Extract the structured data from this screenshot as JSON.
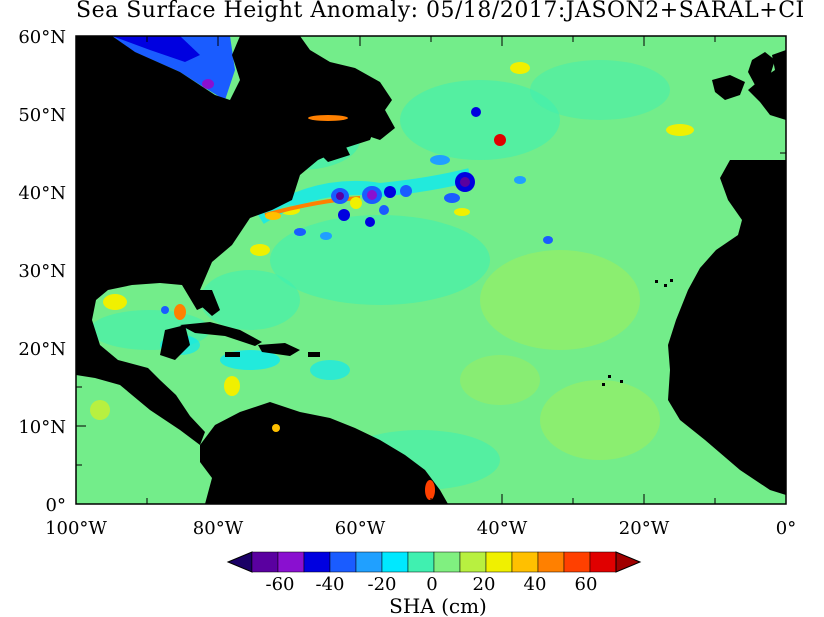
{
  "title": "Sea Surface Height Anomaly: 05/18/2017:JASON2+SARAL+CI",
  "lat_labels": [
    "60°N",
    "50°N",
    "40°N",
    "30°N",
    "20°N",
    "10°N",
    "0°"
  ],
  "lon_labels": [
    "100°W",
    "80°W",
    "60°W",
    "40°W",
    "20°W",
    "0°"
  ],
  "colorbar": {
    "tick_labels": [
      "-60",
      "-40",
      "-20",
      "0",
      "20",
      "40",
      "60"
    ],
    "label": "SHA (cm)",
    "colors": [
      "#1a0066",
      "#5a00a0",
      "#8a10d0",
      "#0000e0",
      "#1a5cff",
      "#20a0ff",
      "#00e8ff",
      "#40f0b0",
      "#80f080",
      "#b8f040",
      "#f0f000",
      "#ffc000",
      "#ff8000",
      "#ff4000",
      "#e00000",
      "#a00000"
    ]
  },
  "colors": {
    "land": "#000000",
    "ocean_base": "#80f080"
  }
}
